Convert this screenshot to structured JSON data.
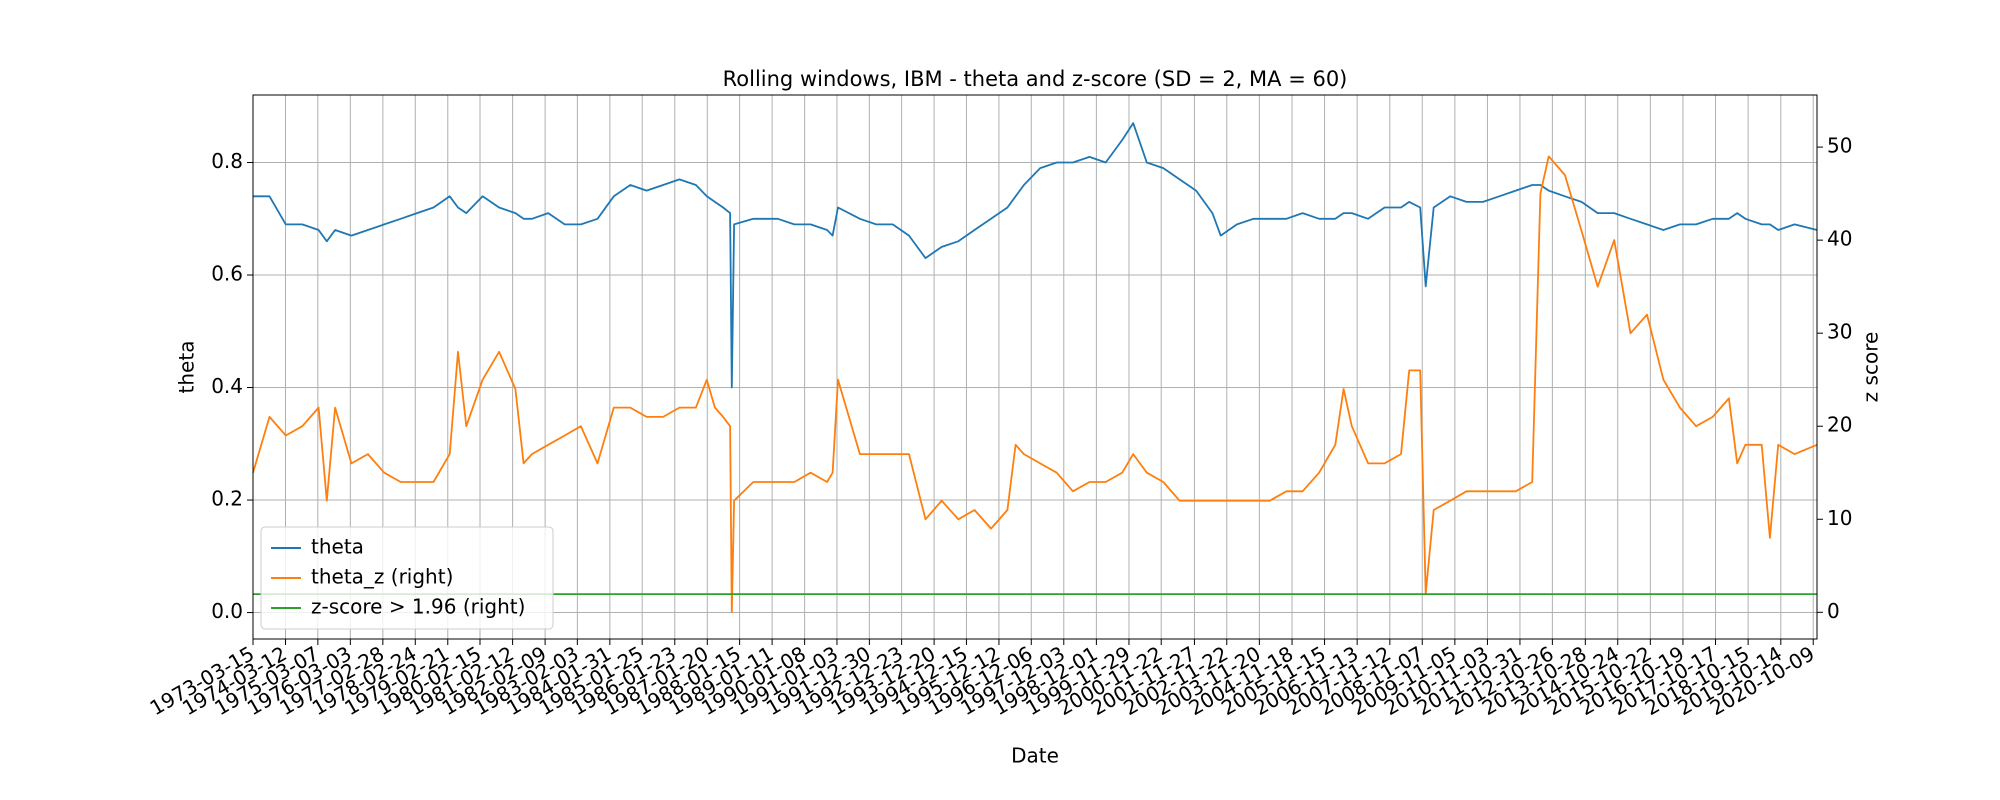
{
  "chart_data": {
    "type": "line",
    "title": "Rolling windows, IBM - theta and z-score (SD = 2, MA = 60)",
    "x_label": "Date",
    "y_label": "theta",
    "y2_label": "z score",
    "x": [
      "1973-03-15",
      "1973-09-15",
      "1974-03-15",
      "1974-09-15",
      "1975-03-15",
      "1975-06-15",
      "1975-09-15",
      "1976-03-15",
      "1976-09-15",
      "1977-03-15",
      "1977-09-15",
      "1978-03-15",
      "1978-09-15",
      "1979-03-15",
      "1979-06-15",
      "1979-09-15",
      "1980-03-15",
      "1980-09-15",
      "1981-03-15",
      "1981-06-15",
      "1981-09-15",
      "1982-03-15",
      "1982-09-15",
      "1983-03-15",
      "1983-09-15",
      "1984-03-15",
      "1984-09-15",
      "1985-03-15",
      "1985-09-15",
      "1986-03-15",
      "1986-09-15",
      "1987-01-15",
      "1987-04-15",
      "1987-07-15",
      "1987-10-01",
      "1987-10-20",
      "1987-11-15",
      "1988-06-15",
      "1989-03-15",
      "1989-09-15",
      "1990-03-15",
      "1990-09-15",
      "1990-11-15",
      "1991-01-15",
      "1991-09-15",
      "1992-03-15",
      "1992-09-15",
      "1993-03-15",
      "1993-09-15",
      "1994-03-15",
      "1994-09-15",
      "1995-03-15",
      "1995-09-15",
      "1996-03-15",
      "1996-06-15",
      "1996-09-15",
      "1997-03-15",
      "1997-09-15",
      "1998-03-15",
      "1998-09-15",
      "1999-03-15",
      "1999-09-15",
      "2000-01-15",
      "2000-06-15",
      "2000-12-15",
      "2001-06-15",
      "2001-12-15",
      "2002-06-15",
      "2002-09-15",
      "2003-03-15",
      "2003-09-15",
      "2004-03-15",
      "2004-09-15",
      "2005-03-15",
      "2005-09-15",
      "2006-03-15",
      "2006-06-15",
      "2006-09-15",
      "2007-03-15",
      "2007-09-15",
      "2008-03-15",
      "2008-06-15",
      "2008-10-15",
      "2008-12-15",
      "2009-03-15",
      "2009-09-15",
      "2010-03-15",
      "2010-09-15",
      "2011-03-15",
      "2011-09-15",
      "2012-03-15",
      "2012-06-15",
      "2012-09-15",
      "2013-03-15",
      "2013-09-15",
      "2014-03-15",
      "2014-09-15",
      "2015-03-15",
      "2015-09-15",
      "2016-03-15",
      "2016-09-15",
      "2017-03-15",
      "2017-09-15",
      "2018-03-15",
      "2018-06-15",
      "2018-09-15",
      "2019-03-15",
      "2019-06-15",
      "2019-09-15",
      "2020-03-15",
      "2020-11-20"
    ],
    "series": [
      {
        "name": "theta",
        "color": "#1f77b4",
        "axis": "y",
        "values": [
          0.74,
          0.74,
          0.69,
          0.69,
          0.68,
          0.66,
          0.68,
          0.67,
          0.68,
          0.69,
          0.7,
          0.71,
          0.72,
          0.74,
          0.72,
          0.71,
          0.74,
          0.72,
          0.71,
          0.7,
          0.7,
          0.71,
          0.69,
          0.69,
          0.7,
          0.74,
          0.76,
          0.75,
          0.76,
          0.77,
          0.76,
          0.74,
          0.73,
          0.72,
          0.71,
          0.4,
          0.69,
          0.7,
          0.7,
          0.69,
          0.69,
          0.68,
          0.67,
          0.72,
          0.7,
          0.69,
          0.69,
          0.67,
          0.63,
          0.65,
          0.66,
          0.68,
          0.7,
          0.72,
          0.74,
          0.76,
          0.79,
          0.8,
          0.8,
          0.81,
          0.8,
          0.84,
          0.87,
          0.8,
          0.79,
          0.77,
          0.75,
          0.71,
          0.67,
          0.69,
          0.7,
          0.7,
          0.7,
          0.71,
          0.7,
          0.7,
          0.71,
          0.71,
          0.7,
          0.72,
          0.72,
          0.73,
          0.72,
          0.58,
          0.72,
          0.74,
          0.73,
          0.73,
          0.74,
          0.75,
          0.76,
          0.76,
          0.75,
          0.74,
          0.73,
          0.71,
          0.71,
          0.7,
          0.69,
          0.68,
          0.69,
          0.69,
          0.7,
          0.7,
          0.71,
          0.7,
          0.69,
          0.69,
          0.68,
          0.69,
          0.68
        ]
      },
      {
        "name": "theta_z (right)",
        "color": "#ff7f0e",
        "axis": "y2",
        "values": [
          15,
          21,
          19,
          20,
          22,
          12,
          22,
          16,
          17,
          15,
          14,
          14,
          14,
          17,
          28,
          20,
          25,
          28,
          24,
          16,
          17,
          18,
          19,
          20,
          16,
          22,
          22,
          21,
          21,
          22,
          22,
          25,
          22,
          21,
          20,
          0,
          12,
          14,
          14,
          14,
          15,
          14,
          15,
          25,
          17,
          17,
          17,
          17,
          10,
          12,
          10,
          11,
          9,
          11,
          18,
          17,
          16,
          15,
          13,
          14,
          14,
          15,
          17,
          15,
          14,
          12,
          12,
          12,
          12,
          12,
          12,
          12,
          13,
          13,
          15,
          18,
          24,
          20,
          16,
          16,
          17,
          26,
          26,
          2,
          11,
          12,
          13,
          13,
          13,
          13,
          14,
          45,
          49,
          47,
          41,
          35,
          40,
          30,
          32,
          25,
          22,
          20,
          21,
          23,
          16,
          18,
          18,
          8,
          18,
          17,
          18
        ]
      },
      {
        "name": "z-score > 1.96 (right)",
        "color": "#2ca02c",
        "axis": "y2",
        "x": [
          "1973-03-15",
          "2020-11-20"
        ],
        "values": [
          1.96,
          1.96
        ]
      }
    ],
    "xlim": [
      "1973-03-15",
      "2020-11-20"
    ],
    "xticks": [
      "1973-03-15",
      "1974-03-12",
      "1975-03-07",
      "1976-03-03",
      "1977-02-28",
      "1978-02-24",
      "1979-02-21",
      "1980-02-15",
      "1981-02-12",
      "1982-02-09",
      "1983-02-03",
      "1984-01-31",
      "1985-01-25",
      "1986-01-23",
      "1987-01-20",
      "1988-01-15",
      "1989-01-11",
      "1990-01-08",
      "1991-01-03",
      "1991-12-30",
      "1992-12-23",
      "1993-12-20",
      "1994-12-15",
      "1995-12-12",
      "1996-12-06",
      "1997-12-03",
      "1998-12-01",
      "1999-11-29",
      "2000-11-22",
      "2001-11-27",
      "2002-11-22",
      "2003-11-20",
      "2004-11-18",
      "2005-11-15",
      "2006-11-13",
      "2007-11-12",
      "2008-11-07",
      "2009-11-05",
      "2010-11-03",
      "2011-10-31",
      "2012-10-26",
      "2013-10-28",
      "2014-10-24",
      "2015-10-22",
      "2016-10-19",
      "2017-10-17",
      "2018-10-15",
      "2019-10-14",
      "2020-10-09"
    ],
    "ylim": [
      -0.047,
      0.92
    ],
    "yticks": [
      {
        "value": 0,
        "label": "0.0"
      },
      0.2,
      0.4,
      0.6,
      0.8
    ],
    "y2lim": [
      -2.87,
      55.6
    ],
    "y2ticks": [
      0,
      10,
      20,
      30,
      40,
      50
    ],
    "grid": true,
    "legend": "lower left"
  }
}
